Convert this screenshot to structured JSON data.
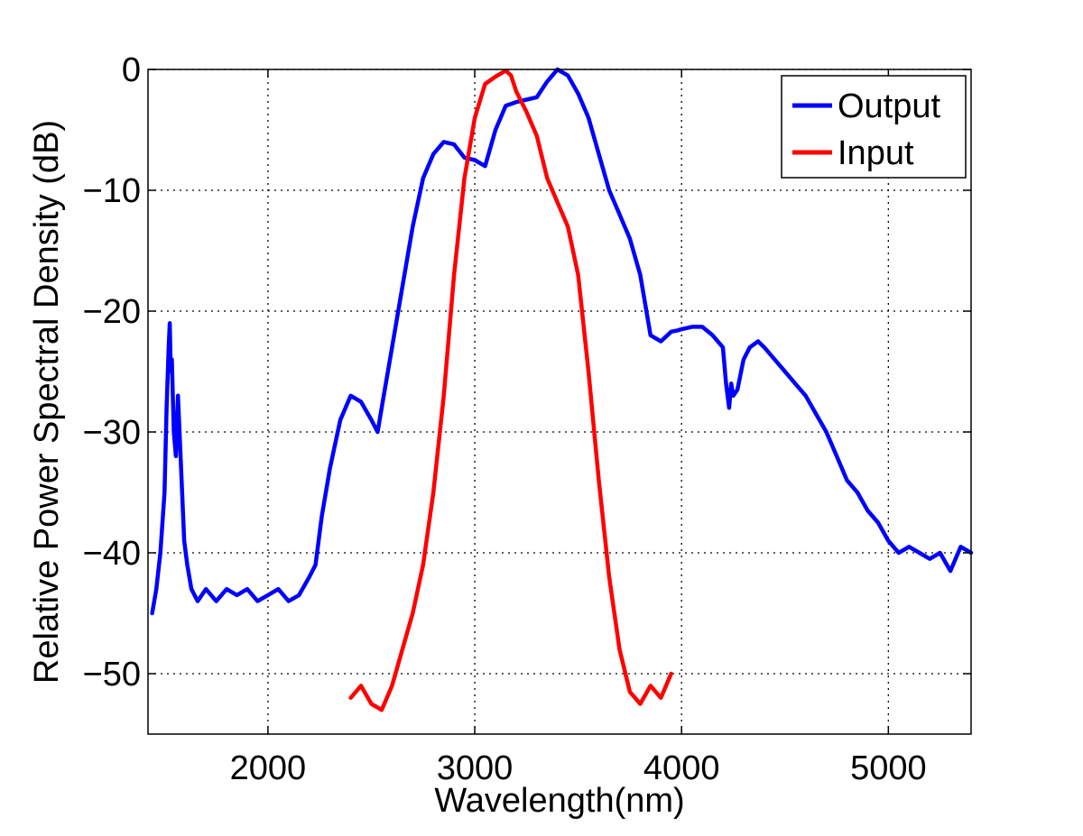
{
  "chart_data": {
    "type": "line",
    "title": "",
    "xlabel": "Wavelength(nm)",
    "ylabel": "Relative Power Spectral Density (dB)",
    "xlim": [
      1420,
      5400
    ],
    "ylim": [
      -55,
      0
    ],
    "xticks": [
      2000,
      3000,
      4000,
      5000
    ],
    "xtick_labels": [
      "2000",
      "3000",
      "4000",
      "5000"
    ],
    "yticks": [
      0,
      -10,
      -20,
      -30,
      -40,
      -50
    ],
    "ytick_labels": [
      "0",
      "−10",
      "−20",
      "−30",
      "−40",
      "−50"
    ],
    "grid": true,
    "legend_position": "top-right",
    "series": [
      {
        "name": "Output",
        "color": "#0000ff",
        "x": [
          1440,
          1460,
          1480,
          1500,
          1510,
          1520,
          1525,
          1530,
          1535,
          1545,
          1555,
          1565,
          1575,
          1585,
          1595,
          1610,
          1630,
          1660,
          1700,
          1750,
          1800,
          1850,
          1900,
          1950,
          2000,
          2050,
          2100,
          2150,
          2200,
          2230,
          2260,
          2300,
          2350,
          2400,
          2450,
          2500,
          2530,
          2560,
          2600,
          2650,
          2700,
          2750,
          2800,
          2850,
          2900,
          2950,
          3000,
          3050,
          3100,
          3150,
          3200,
          3250,
          3300,
          3350,
          3400,
          3450,
          3500,
          3550,
          3600,
          3650,
          3700,
          3750,
          3800,
          3850,
          3900,
          3950,
          3980,
          4000,
          4050,
          4100,
          4150,
          4200,
          4215,
          4230,
          4240,
          4250,
          4270,
          4300,
          4330,
          4370,
          4400,
          4450,
          4500,
          4550,
          4600,
          4650,
          4700,
          4750,
          4800,
          4850,
          4900,
          4950,
          5000,
          5050,
          5100,
          5150,
          5200,
          5250,
          5300,
          5350,
          5400
        ],
        "y": [
          -45,
          -43,
          -40,
          -35,
          -28,
          -23,
          -21,
          -25,
          -24,
          -30,
          -32,
          -27,
          -31,
          -35,
          -39,
          -41,
          -43,
          -44,
          -43,
          -44,
          -43,
          -43.5,
          -43,
          -44,
          -43.5,
          -43,
          -44,
          -43.5,
          -42,
          -41,
          -37,
          -33,
          -29,
          -27,
          -27.5,
          -29,
          -30,
          -27,
          -23,
          -18,
          -13,
          -9,
          -7,
          -6,
          -6.2,
          -7.3,
          -7.5,
          -8,
          -5,
          -3,
          -2.7,
          -2.5,
          -2.3,
          -1,
          0,
          -0.5,
          -2,
          -4,
          -7,
          -10,
          -12,
          -14,
          -17,
          -22,
          -22.5,
          -21.7,
          -21.6,
          -21.5,
          -21.3,
          -21.3,
          -22,
          -23,
          -26,
          -28,
          -26,
          -27,
          -26.5,
          -24,
          -23,
          -22.5,
          -23,
          -24,
          -25,
          -26,
          -27,
          -28.5,
          -30,
          -32,
          -34,
          -35,
          -36.5,
          -37.5,
          -39,
          -40,
          -39.5,
          -40,
          -40.5,
          -40,
          -41.5,
          -39.5,
          -40
        ]
      },
      {
        "name": "Input",
        "color": "#ff0000",
        "x": [
          2400,
          2450,
          2500,
          2550,
          2600,
          2650,
          2700,
          2750,
          2800,
          2850,
          2900,
          2950,
          3000,
          3050,
          3100,
          3150,
          3175,
          3200,
          3250,
          3300,
          3350,
          3400,
          3450,
          3500,
          3550,
          3600,
          3650,
          3700,
          3750,
          3800,
          3850,
          3900,
          3950
        ],
        "y": [
          -52,
          -51,
          -52.5,
          -53,
          -51,
          -48,
          -45,
          -41,
          -35,
          -27,
          -17,
          -9,
          -4,
          -1.2,
          -0.6,
          -0.1,
          -0.5,
          -1.8,
          -3.5,
          -5.5,
          -9,
          -11,
          -13,
          -17,
          -25,
          -34,
          -42,
          -48,
          -51.5,
          -52.5,
          -51,
          -52,
          -50
        ]
      }
    ]
  }
}
